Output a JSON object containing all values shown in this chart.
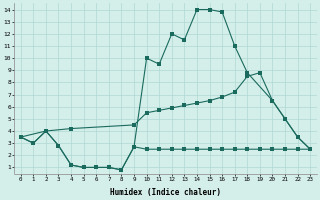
{
  "xlabel": "Humidex (Indice chaleur)",
  "background_color": "#d4eeea",
  "grid_color": "#b0d8d2",
  "line_color": "#1a6b5e",
  "line_top_x": [
    0,
    1,
    2,
    3,
    4,
    5,
    6,
    7,
    8,
    9,
    10,
    11,
    12,
    13,
    14,
    15,
    16,
    17,
    18,
    20,
    21,
    22,
    23
  ],
  "line_top_y": [
    3.5,
    3.0,
    4.0,
    2.8,
    1.2,
    1.0,
    1.0,
    1.0,
    0.8,
    2.7,
    10.0,
    9.5,
    12.0,
    11.5,
    14.0,
    14.0,
    13.8,
    11.0,
    8.8,
    6.5,
    5.0,
    3.5,
    2.5
  ],
  "line_mid_x": [
    0,
    2,
    4,
    9,
    10,
    11,
    12,
    13,
    14,
    15,
    16,
    17,
    18,
    19,
    20,
    21,
    22,
    23
  ],
  "line_mid_y": [
    3.5,
    4.0,
    4.2,
    4.5,
    5.5,
    5.7,
    5.9,
    6.1,
    6.3,
    6.5,
    6.8,
    7.2,
    8.5,
    8.8,
    6.5,
    5.0,
    3.5,
    2.5
  ],
  "line_bot_x": [
    0,
    1,
    2,
    3,
    4,
    5,
    6,
    7,
    8,
    9,
    10,
    11,
    12,
    13,
    14,
    15,
    16,
    17,
    18,
    19,
    20,
    21,
    22,
    23
  ],
  "line_bot_y": [
    3.5,
    3.0,
    4.0,
    2.8,
    1.2,
    1.0,
    1.0,
    1.0,
    0.8,
    2.7,
    2.5,
    2.5,
    2.5,
    2.5,
    2.5,
    2.5,
    2.5,
    2.5,
    2.5,
    2.5,
    2.5,
    2.5,
    2.5,
    2.5
  ],
  "ylim": [
    0.5,
    14.5
  ],
  "xlim": [
    -0.5,
    23.5
  ],
  "yticks": [
    1,
    2,
    3,
    4,
    5,
    6,
    7,
    8,
    9,
    10,
    11,
    12,
    13,
    14
  ],
  "xticks": [
    0,
    1,
    2,
    3,
    4,
    5,
    6,
    7,
    8,
    9,
    10,
    11,
    12,
    13,
    14,
    15,
    16,
    17,
    18,
    19,
    20,
    21,
    22,
    23
  ]
}
